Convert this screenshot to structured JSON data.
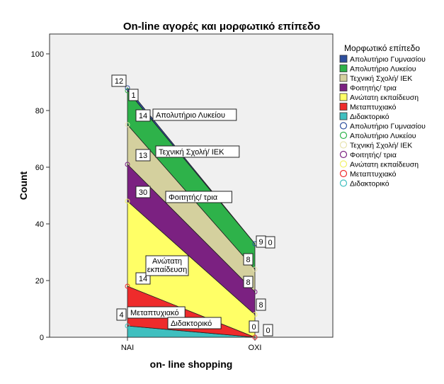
{
  "chart_data": {
    "type": "area",
    "stacked": true,
    "title": "On-line αγορές και μορφωτικό επίπεδο",
    "xlabel": "on- line shopping",
    "ylabel": "Count",
    "categories": [
      "ΝΑΙ",
      "ΟΧΙ"
    ],
    "ylim": [
      0,
      100
    ],
    "yticks": [
      0,
      20,
      40,
      60,
      80,
      100
    ],
    "grid": false,
    "legend": {
      "title": "Μορφωτικό επίπεδο",
      "placement": "right"
    },
    "series": [
      {
        "name": "Διδακτορικό",
        "values": [
          4,
          0
        ],
        "color": "#3fbfbf"
      },
      {
        "name": "Μεταπτυχιακό",
        "values": [
          14,
          0
        ],
        "color": "#ee2b2b"
      },
      {
        "name": "Ανώτατη εκπαίδευση",
        "values": [
          30,
          8
        ],
        "color": "#ffff66"
      },
      {
        "name": "Φοιτητής/ τρια",
        "values": [
          13,
          8
        ],
        "color": "#7b2181"
      },
      {
        "name": "Τεχνική Σχολή/ ΙΕΚ",
        "values": [
          14,
          8
        ],
        "color": "#d4d09e"
      },
      {
        "name": "Απολυτήριο Λυκείου",
        "values": [
          12,
          9
        ],
        "color": "#2eb24a"
      },
      {
        "name": "Απολυτήριο Γυμνασίου",
        "values": [
          1,
          0
        ],
        "color": "#2e4f9e"
      }
    ],
    "area_labels": [
      "Απολυτήριο Λυκείου",
      "Τεχνική Σχολή/ ΙΕΚ",
      "Φοιτητής/ τρια",
      "Ανώτατη εκπαίδευση",
      "Μεταπτυχιακό",
      "Διδακτορικό"
    ],
    "data_labels": {
      "ΝΑΙ": [
        "4",
        "14",
        "30",
        "13",
        "14",
        "12",
        "1"
      ],
      "ΟΧΙ": [
        "0",
        "0",
        "8",
        "8",
        "8",
        "9",
        "0"
      ]
    },
    "legend_fill": [
      {
        "label": "Απολυτήριο Γυμνασίου",
        "color": "#2e4f9e"
      },
      {
        "label": "Απολυτήριο Λυκείου",
        "color": "#2eb24a"
      },
      {
        "label": "Τεχνική Σχολή/ ΙΕΚ",
        "color": "#d4d09e"
      },
      {
        "label": "Φοιτητής/ τρια",
        "color": "#7b2181"
      },
      {
        "label": "Ανώτατη εκπαίδευση",
        "color": "#ffff66"
      },
      {
        "label": "Μεταπτυχιακό",
        "color": "#ee2b2b"
      },
      {
        "label": "Διδακτορικό",
        "color": "#3fbfbf"
      }
    ],
    "legend_markers": [
      {
        "label": "Απολυτήριο Γυμνασίου",
        "color": "#2e4f9e"
      },
      {
        "label": "Απολυτήριο Λυκείου",
        "color": "#2eb24a"
      },
      {
        "label": "Τεχνική Σχολή/ ΙΕΚ",
        "color": "#e8e4b0"
      },
      {
        "label": "Φοιτητής/ τρια",
        "color": "#7b2181"
      },
      {
        "label": "Ανώτατη εκπαίδευση",
        "color": "#f2f266"
      },
      {
        "label": "Μεταπτυχιακό",
        "color": "#ee2b2b"
      },
      {
        "label": "Διδακτορικό",
        "color": "#3fbfbf"
      }
    ]
  }
}
